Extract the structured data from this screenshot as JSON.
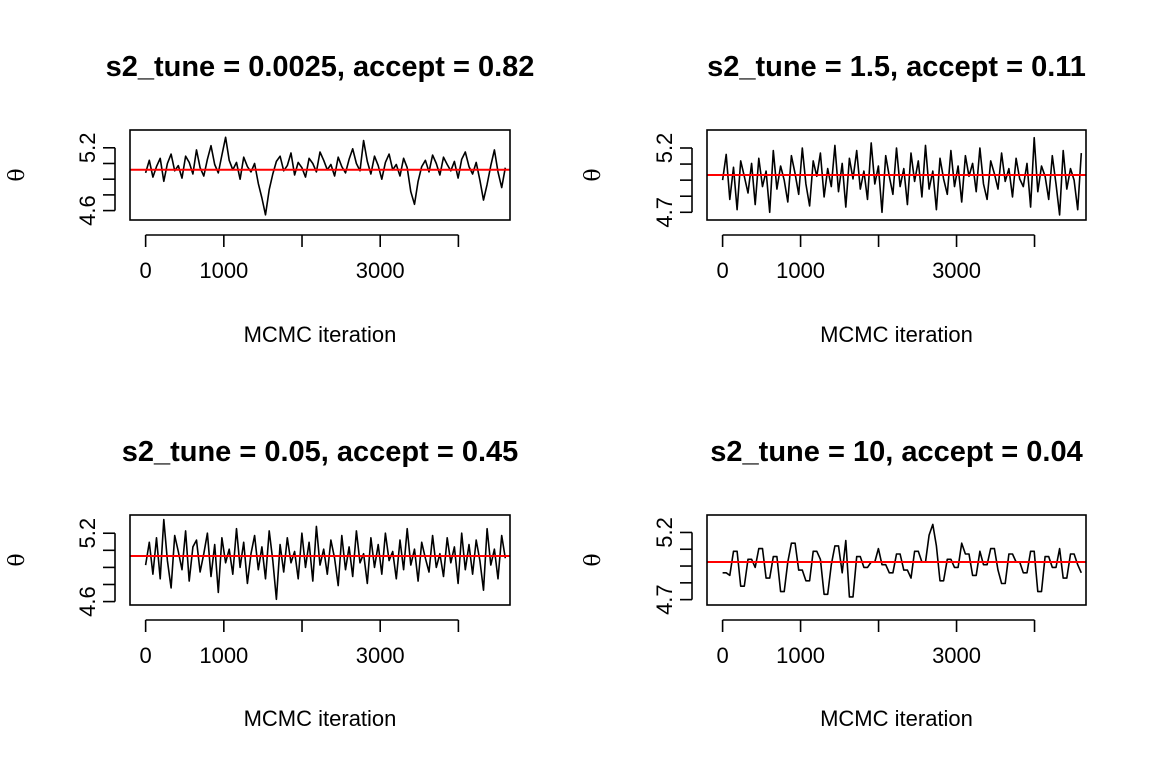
{
  "chart_data": [
    {
      "type": "line",
      "title": "s2_tune = 0.0025, accept = 0.82",
      "xlabel": "MCMC iteration",
      "ylabel": "θ",
      "xticks": [
        0,
        1000,
        3000
      ],
      "yticks": [
        4.6,
        5.2
      ],
      "xlim": [
        -200,
        4660
      ],
      "ylim": [
        4.51,
        5.37
      ],
      "reference_line": {
        "y": 4.99,
        "color": "#ff0000"
      },
      "series": [
        {
          "values": [
            4.96,
            5.08,
            4.92,
            5.02,
            5.1,
            4.88,
            5.05,
            5.14,
            4.98,
            5.03,
            4.91,
            5.12,
            5.06,
            4.95,
            5.18,
            5.01,
            4.93,
            5.09,
            5.22,
            5.04,
            4.96,
            5.13,
            5.3,
            5.08,
            4.99,
            5.06,
            4.9,
            5.11,
            5.02,
            4.97,
            5.05,
            4.86,
            4.72,
            4.56,
            4.8,
            4.95,
            5.07,
            5.12,
            4.98,
            5.03,
            5.15,
            4.94,
            5.06,
            5.01,
            4.92,
            5.1,
            5.05,
            4.97,
            5.16,
            5.08,
            4.99,
            5.04,
            4.93,
            5.11,
            5.02,
            4.96,
            5.09,
            5.19,
            5.05,
            4.98,
            5.27,
            5.07,
            4.95,
            5.12,
            5.03,
            4.9,
            5.06,
            5.14,
            4.99,
            5.04,
            4.93,
            5.1,
            5.01,
            4.78,
            4.66,
            4.88,
            5.02,
            5.08,
            4.97,
            5.13,
            5.05,
            4.94,
            5.11,
            5.04,
            4.98,
            5.07,
            4.91,
            5.09,
            5.16,
            5.02,
            4.95,
            5.06,
            4.89,
            4.7,
            4.85,
            5.03,
            5.18,
            4.97,
            4.82,
            5.01
          ]
        }
      ]
    },
    {
      "type": "line",
      "title": "s2_tune = 1.5, accept = 0.11",
      "xlabel": "MCMC iteration",
      "ylabel": "θ",
      "xticks": [
        0,
        1000,
        3000
      ],
      "yticks": [
        4.7,
        5.2
      ],
      "xlim": [
        -200,
        4660
      ],
      "ylim": [
        4.64,
        5.34
      ],
      "reference_line": {
        "y": 4.99,
        "color": "#ff0000"
      },
      "series": [
        {
          "values": [
            4.95,
            5.15,
            4.8,
            5.05,
            4.72,
            5.1,
            4.98,
            4.85,
            5.08,
            4.76,
            5.12,
            4.9,
            5.02,
            4.7,
            5.18,
            4.88,
            5.06,
            4.95,
            4.78,
            5.14,
            5.0,
            4.84,
            5.2,
            4.92,
            4.75,
            5.1,
            4.98,
            5.16,
            4.82,
            5.04,
            4.9,
            5.22,
            4.86,
            5.08,
            4.74,
            5.12,
            4.96,
            5.18,
            4.88,
            5.02,
            4.8,
            5.24,
            4.92,
            5.06,
            4.7,
            5.14,
            4.98,
            4.84,
            5.2,
            4.9,
            5.04,
            4.76,
            5.16,
            4.94,
            5.1,
            4.82,
            5.22,
            4.88,
            5.02,
            4.72,
            5.12,
            4.96,
            4.84,
            5.18,
            4.9,
            5.06,
            4.78,
            5.14,
            4.98,
            5.08,
            4.86,
            5.2,
            4.92,
            4.8,
            5.1,
            5.0,
            4.88,
            5.16,
            4.94,
            5.04,
            4.82,
            5.12,
            4.96,
            4.9,
            5.08,
            4.74,
            5.28,
            4.86,
            5.06,
            4.98,
            4.8,
            5.14,
            4.92,
            4.68,
            5.18,
            4.88,
            5.04,
            4.95,
            4.72,
            5.16
          ]
        }
      ]
    },
    {
      "type": "line",
      "title": "s2_tune = 0.05, accept = 0.45",
      "xlabel": "MCMC iteration",
      "ylabel": "θ",
      "xticks": [
        0,
        1000,
        3000
      ],
      "yticks": [
        4.6,
        5.2
      ],
      "xlim": [
        -200,
        4660
      ],
      "ylim": [
        4.57,
        5.36
      ],
      "reference_line": {
        "y": 5.0,
        "color": "#ff0000"
      },
      "series": [
        {
          "values": [
            4.92,
            5.12,
            4.84,
            5.16,
            4.8,
            5.32,
            4.96,
            4.72,
            5.18,
            5.04,
            4.88,
            5.22,
            4.78,
            5.08,
            5.14,
            4.86,
            5.02,
            5.2,
            4.82,
            5.1,
            4.68,
            5.16,
            4.94,
            5.06,
            4.84,
            5.24,
            4.9,
            5.12,
            4.76,
            5.02,
            5.18,
            4.88,
            5.08,
            4.8,
            5.22,
            4.96,
            4.62,
            5.1,
            4.86,
            5.16,
            4.94,
            5.04,
            4.8,
            5.2,
            4.9,
            5.12,
            4.78,
            5.26,
            4.92,
            5.06,
            4.84,
            5.14,
            4.98,
            4.74,
            5.18,
            4.88,
            5.08,
            4.82,
            5.22,
            4.94,
            5.02,
            4.76,
            5.16,
            4.9,
            5.1,
            4.84,
            5.2,
            4.96,
            5.04,
            4.8,
            5.14,
            4.88,
            5.24,
            4.92,
            5.06,
            4.78,
            5.12,
            4.98,
            4.86,
            5.18,
            4.9,
            5.02,
            4.82,
            5.16,
            4.94,
            5.08,
            4.76,
            5.2,
            4.88,
            5.1,
            4.84,
            5.14,
            4.96,
            4.7,
            5.24,
            4.92,
            5.06,
            4.8,
            5.18,
            4.98
          ]
        }
      ]
    },
    {
      "type": "line",
      "title": "s2_tune = 10, accept = 0.04",
      "xlabel": "MCMC iteration",
      "ylabel": "θ",
      "xticks": [
        0,
        1000,
        3000
      ],
      "yticks": [
        4.7,
        5.2
      ],
      "xlim": [
        -200,
        4660
      ],
      "ylim": [
        4.66,
        5.33
      ],
      "reference_line": {
        "y": 4.98,
        "color": "#ff0000"
      },
      "series": [
        {
          "values": [
            4.9,
            4.9,
            4.88,
            5.06,
            5.06,
            4.8,
            4.8,
            5.0,
            5.0,
            4.94,
            5.08,
            5.08,
            4.86,
            4.86,
            5.02,
            5.02,
            4.76,
            4.76,
            4.98,
            5.12,
            5.12,
            4.92,
            4.92,
            4.84,
            4.84,
            5.06,
            5.06,
            5.0,
            4.74,
            4.74,
            4.96,
            5.1,
            5.1,
            4.9,
            5.14,
            4.72,
            4.72,
            5.02,
            5.02,
            4.94,
            4.94,
            4.98,
            4.98,
            5.08,
            4.96,
            4.96,
            4.9,
            4.9,
            5.04,
            5.04,
            4.92,
            4.92,
            4.86,
            5.06,
            5.06,
            4.98,
            4.98,
            5.18,
            5.26,
            5.1,
            4.84,
            4.84,
            5.0,
            5.0,
            4.94,
            4.94,
            5.12,
            5.04,
            5.04,
            4.88,
            4.88,
            5.06,
            4.96,
            4.96,
            5.08,
            5.08,
            4.92,
            4.82,
            4.82,
            5.04,
            5.04,
            4.98,
            4.98,
            4.9,
            4.9,
            5.06,
            5.06,
            4.76,
            4.76,
            5.02,
            5.02,
            4.94,
            4.94,
            5.08,
            4.86,
            4.86,
            5.04,
            5.04,
            4.96,
            4.9
          ]
        }
      ]
    }
  ]
}
